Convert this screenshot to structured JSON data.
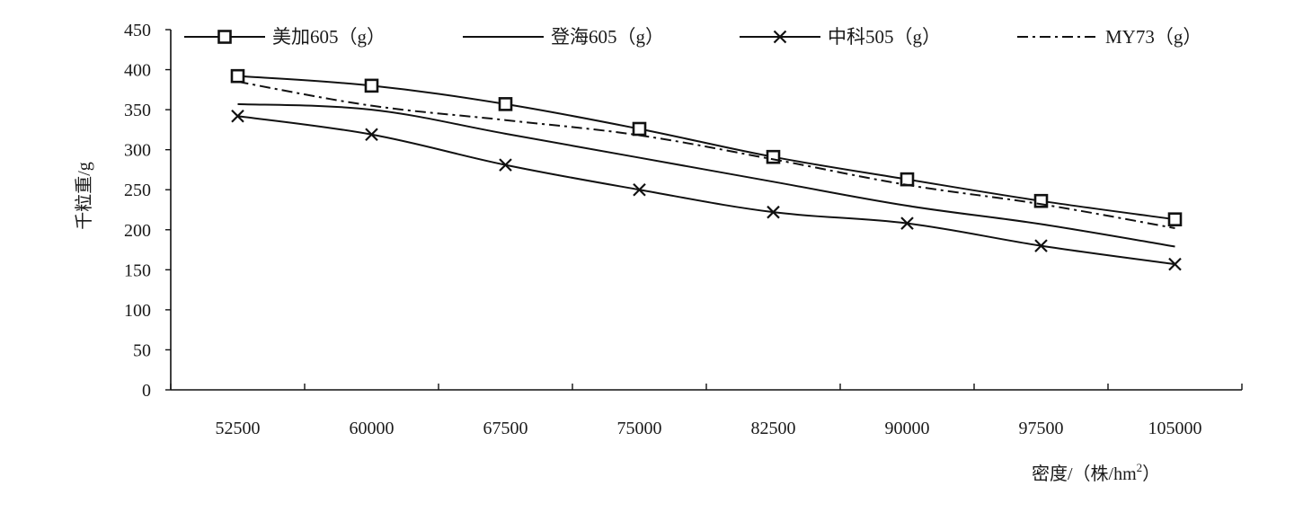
{
  "chart_data": {
    "type": "line",
    "xlabel": "密度/（株/hm",
    "xlabel_sup": "2",
    "xlabel_tail": "）",
    "ylabel": "千粒重/g",
    "ylim": [
      0,
      450
    ],
    "yticks": [
      0,
      50,
      100,
      150,
      200,
      250,
      300,
      350,
      400,
      450
    ],
    "categories": [
      "52500",
      "60000",
      "67500",
      "75000",
      "82500",
      "90000",
      "97500",
      "105000"
    ],
    "series": [
      {
        "name": "美加605（g）",
        "marker": "square",
        "style": "solid",
        "color": "#111111",
        "values": [
          392,
          380,
          357,
          326,
          291,
          263,
          236,
          213
        ]
      },
      {
        "name": "登海605（g）",
        "marker": "none",
        "style": "solid",
        "color": "#111111",
        "values": [
          357,
          350,
          320,
          290,
          260,
          230,
          207,
          179
        ]
      },
      {
        "name": "中科505（g）",
        "marker": "x",
        "style": "solid",
        "color": "#111111",
        "values": [
          342,
          319,
          281,
          250,
          222,
          208,
          180,
          157
        ]
      },
      {
        "name": "MY73（g）",
        "marker": "none",
        "style": "dashdot",
        "color": "#111111",
        "values": [
          385,
          355,
          337,
          318,
          288,
          256,
          232,
          202
        ]
      }
    ],
    "legend_position": "top",
    "grid": false
  }
}
